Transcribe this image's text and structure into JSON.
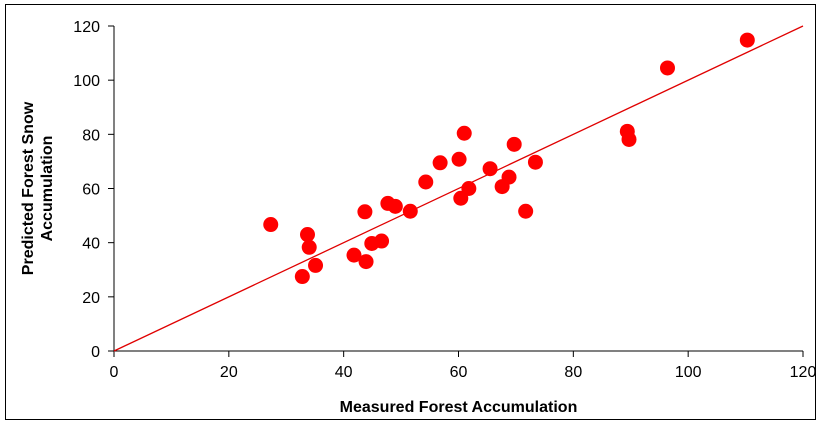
{
  "chart_data": {
    "type": "scatter",
    "xlabel": "Measured Forest Accumulation",
    "ylabel_lines": [
      "Predicted Forest Snow",
      "Accumulation"
    ],
    "xlim": [
      0,
      120
    ],
    "ylim": [
      0,
      120
    ],
    "xticks": [
      0,
      20,
      40,
      60,
      80,
      100,
      120
    ],
    "yticks": [
      0,
      20,
      40,
      60,
      80,
      100,
      120
    ],
    "grid": false,
    "legend": "none",
    "marker_color": "#ff0000",
    "line_color": "#e00000",
    "reference_line": {
      "x": [
        0,
        120
      ],
      "y": [
        0,
        120
      ]
    },
    "points": [
      {
        "x": 27.3,
        "y": 46.7
      },
      {
        "x": 32.8,
        "y": 27.5
      },
      {
        "x": 33.7,
        "y": 43.0
      },
      {
        "x": 34.0,
        "y": 38.3
      },
      {
        "x": 35.1,
        "y": 31.6
      },
      {
        "x": 41.8,
        "y": 35.4
      },
      {
        "x": 43.7,
        "y": 51.4
      },
      {
        "x": 43.9,
        "y": 33.0
      },
      {
        "x": 44.9,
        "y": 39.7
      },
      {
        "x": 46.6,
        "y": 40.6
      },
      {
        "x": 47.7,
        "y": 54.5
      },
      {
        "x": 49.0,
        "y": 53.4
      },
      {
        "x": 51.6,
        "y": 51.6
      },
      {
        "x": 54.3,
        "y": 62.4
      },
      {
        "x": 56.8,
        "y": 69.5
      },
      {
        "x": 60.1,
        "y": 70.8
      },
      {
        "x": 60.4,
        "y": 56.4
      },
      {
        "x": 61.0,
        "y": 80.4
      },
      {
        "x": 61.8,
        "y": 60.0
      },
      {
        "x": 65.5,
        "y": 67.3
      },
      {
        "x": 67.6,
        "y": 60.7
      },
      {
        "x": 68.8,
        "y": 64.2
      },
      {
        "x": 69.7,
        "y": 76.3
      },
      {
        "x": 71.7,
        "y": 51.6
      },
      {
        "x": 73.4,
        "y": 69.7
      },
      {
        "x": 89.4,
        "y": 81.1
      },
      {
        "x": 89.7,
        "y": 78.1
      },
      {
        "x": 96.4,
        "y": 104.5
      },
      {
        "x": 110.3,
        "y": 114.8
      }
    ]
  }
}
